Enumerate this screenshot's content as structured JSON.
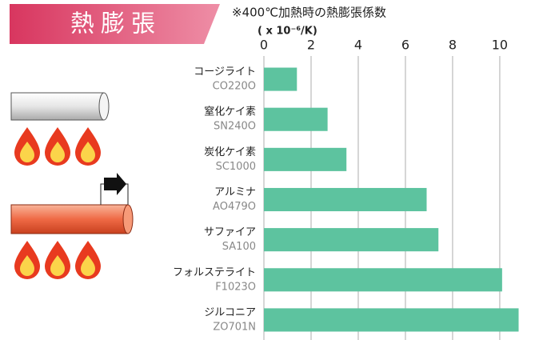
{
  "chart_data": {
    "type": "hbar",
    "title": "熱膨張",
    "subtitle": "※400℃加熱時の熱膨張係数",
    "unit": "( x 10⁻⁶/K)",
    "categories": [
      "コージライト",
      "窒化ケイ素",
      "炭化ケイ素",
      "アルミナ",
      "サファイア",
      "フォルステライト",
      "ジルコニア"
    ],
    "codes": [
      "CO220O",
      "SN240O",
      "SC1000",
      "AO479O",
      "SA100",
      "F1023O",
      "ZO701N"
    ],
    "values": [
      1.4,
      2.7,
      3.5,
      6.9,
      7.4,
      10.1,
      10.8
    ],
    "color": "#5dc39f",
    "xlim": [
      0,
      11.8
    ],
    "xticks": [
      0,
      2,
      4,
      6,
      8,
      10
    ],
    "grid": true
  }
}
